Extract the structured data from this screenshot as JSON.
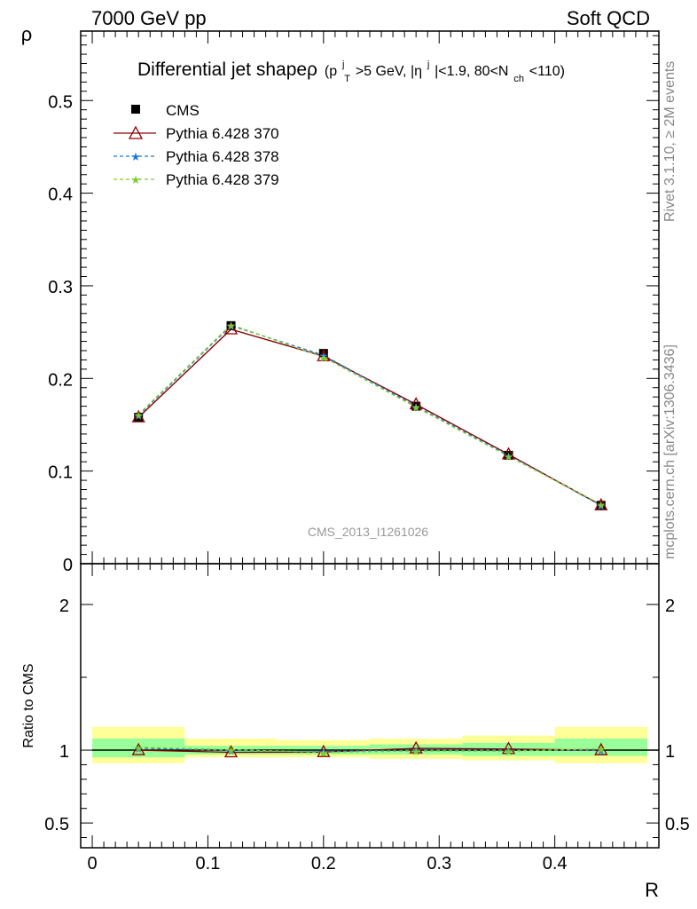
{
  "header": {
    "left": "7000 GeV pp",
    "right": "Soft QCD"
  },
  "side": {
    "rivet": "Rivet 3.1.10, ≥ 2M events",
    "mcplots": "mcplots.cern.ch [arXiv:1306.3436]"
  },
  "chart_data": [
    {
      "type": "line",
      "title": "Differential jet shapeρ",
      "title_cuts": {
        "open": "(p",
        "pt_sup": "j",
        "pt_sub": "T",
        "pt_cut": ">5 GeV, |η",
        "eta_sup": "j",
        "eta_cut": "|<1.9, 80<N",
        "nch_sub": "ch",
        "close": "<110)"
      },
      "watermark": "CMS_2013_I1261026",
      "xlabel": "R",
      "ylabel": "ρ",
      "xlim": [
        -0.01,
        0.49
      ],
      "ylim": [
        0,
        0.575
      ],
      "xticks": [
        "0",
        "0.1",
        "0.2",
        "0.3",
        "0.4"
      ],
      "yticks": [
        "0",
        "0.1",
        "0.2",
        "0.3",
        "0.4",
        "0.5"
      ],
      "x": [
        0.04,
        0.12,
        0.2,
        0.28,
        0.36,
        0.44
      ],
      "series": [
        {
          "name": "CMS",
          "values": [
            0.158,
            0.257,
            0.227,
            0.17,
            0.117,
            0.063
          ],
          "color": "#000000",
          "marker": "square"
        },
        {
          "name": "Pythia 6.428 370",
          "values": [
            0.158,
            0.253,
            0.224,
            0.172,
            0.118,
            0.063
          ],
          "color": "#8b0000",
          "marker": "triangle"
        },
        {
          "name": "Pythia 6.428 378",
          "values": [
            0.16,
            0.257,
            0.225,
            0.17,
            0.117,
            0.063
          ],
          "color": "#1e78dc",
          "marker": "star",
          "dash": "dashed"
        },
        {
          "name": "Pythia 6.428 379",
          "values": [
            0.161,
            0.258,
            0.223,
            0.169,
            0.116,
            0.064
          ],
          "color": "#7ccd2c",
          "marker": "star",
          "dash": "dashed"
        }
      ]
    },
    {
      "type": "line",
      "ylabel": "Ratio to CMS",
      "ylim": [
        0.33,
        2.28
      ],
      "yticks": [
        "0.5",
        "1",
        "2"
      ],
      "x": [
        0.04,
        0.12,
        0.2,
        0.28,
        0.36,
        0.44
      ],
      "band_edges": [
        0.0,
        0.08,
        0.16,
        0.24,
        0.32,
        0.4,
        0.48
      ],
      "band_stat": [
        [
          0.95,
          1.08
        ],
        [
          0.97,
          1.03
        ],
        [
          0.97,
          1.03
        ],
        [
          0.97,
          1.04
        ],
        [
          0.96,
          1.05
        ],
        [
          0.96,
          1.08
        ]
      ],
      "band_total": [
        [
          0.91,
          1.16
        ],
        [
          0.95,
          1.08
        ],
        [
          0.95,
          1.07
        ],
        [
          0.94,
          1.08
        ],
        [
          0.93,
          1.1
        ],
        [
          0.91,
          1.16
        ]
      ],
      "series": [
        {
          "name": "Pythia 6.428 370",
          "values": [
            1.0,
            0.985,
            0.987,
            1.012,
            1.008,
            1.0
          ]
        },
        {
          "name": "Pythia 6.428 378",
          "values": [
            1.013,
            0.998,
            0.992,
            1.0,
            1.0,
            1.0
          ]
        },
        {
          "name": "Pythia 6.428 379",
          "values": [
            1.02,
            1.003,
            0.985,
            0.994,
            0.993,
            1.01
          ]
        }
      ]
    }
  ]
}
